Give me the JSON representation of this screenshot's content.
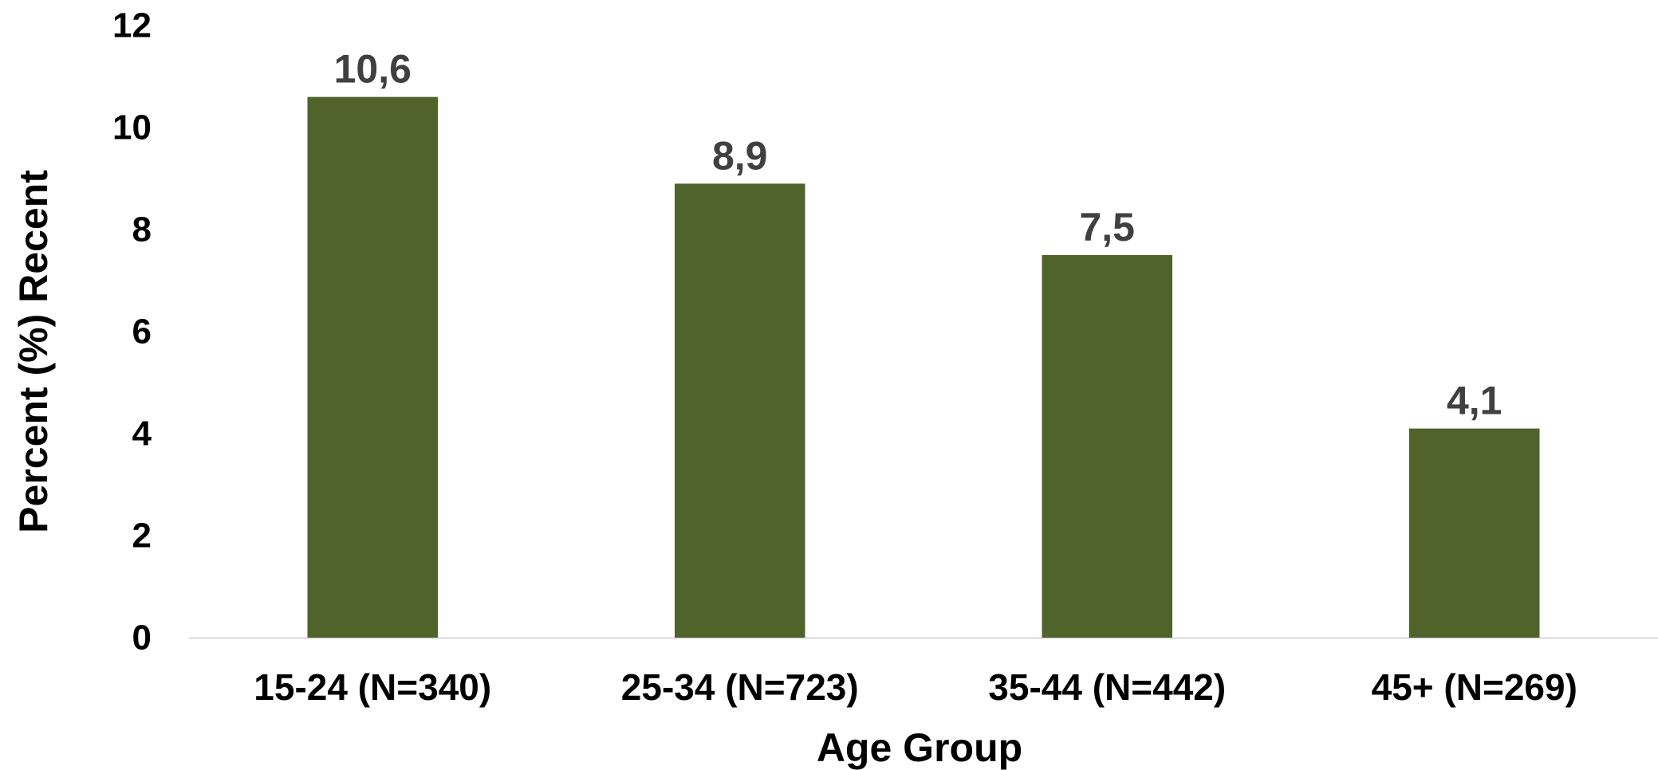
{
  "chart_data": {
    "type": "bar",
    "categories": [
      "15-24 (N=340)",
      "25-34 (N=723)",
      "35-44 (N=442)",
      "45+ (N=269)"
    ],
    "values": [
      10.6,
      8.9,
      7.5,
      4.1
    ],
    "data_labels": [
      "10,6",
      "8,9",
      "7,5",
      "4,1"
    ],
    "xlabel": "Age Group",
    "ylabel": "Percent (%) Recent",
    "ylim": [
      0,
      12
    ],
    "yticks": [
      0,
      2,
      4,
      6,
      8,
      10,
      12
    ],
    "grid": false,
    "legend": "none",
    "colors": {
      "bar": "#4f632b",
      "data_label": "#404040",
      "axis_line": "#d9d9d9"
    }
  }
}
